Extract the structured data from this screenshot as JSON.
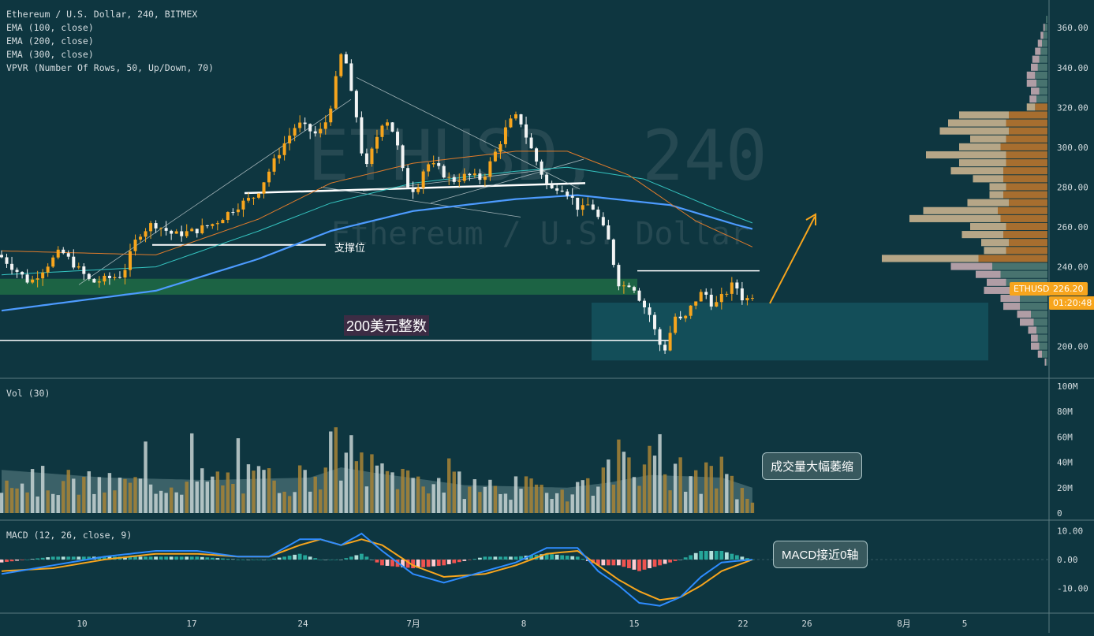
{
  "header": {
    "symbol": "Ethereum / U.S. Dollar, 240, BITMEX",
    "ema100": "EMA (100, close)",
    "ema200": "EMA (200, close)",
    "ema300": "EMA (300, close)",
    "vpvr": "VPVR (Number Of Rows, 50, Up/Down, 70)"
  },
  "watermark": {
    "big": "ETHUSD, 240",
    "sub": "Ethereum / U.S. Dollar"
  },
  "annotations": {
    "support": "支撑位",
    "round_number": "200美元整数",
    "volume_callout": "成交量大幅萎缩",
    "macd_callout": "MACD接近0轴"
  },
  "price_tag": {
    "symbol": "ETHUSD",
    "price": "226.20",
    "countdown": "01:20:48"
  },
  "colors": {
    "background": "#0e3640",
    "up": "#f7a51d",
    "down": "#f2f4f4",
    "ema100": "#e07b2b",
    "ema200": "#35c4c0",
    "ema300": "#4d9bff",
    "macd_line": "#2e8cff",
    "signal_line": "#f7a51d",
    "support_zone": "#1f6b45",
    "target_zone": "#14525e"
  },
  "panels": {
    "volume_label": "Vol (30)",
    "macd_label": "MACD (12, 26, close, 9)"
  },
  "x_axis": [
    "10",
    "17",
    "24",
    "7月",
    "8",
    "15",
    "22",
    "26",
    "8月",
    "5"
  ],
  "chart_data": [
    {
      "type": "candlestick",
      "title": "Ethereum / U.S. Dollar, 240, BITMEX",
      "ylim": [
        188,
        368
      ],
      "y_ticks": [
        "200.00",
        "220.00",
        "240.00",
        "260.00",
        "280.00",
        "300.00",
        "320.00",
        "340.00",
        "360.00"
      ],
      "price_path": [
        [
          0,
          246
        ],
        [
          6,
          232
        ],
        [
          12,
          248
        ],
        [
          18,
          232
        ],
        [
          24,
          236
        ],
        [
          27,
          256
        ],
        [
          30,
          262
        ],
        [
          34,
          256
        ],
        [
          38,
          258
        ],
        [
          42,
          262
        ],
        [
          46,
          270
        ],
        [
          50,
          276
        ],
        [
          55,
          300
        ],
        [
          58,
          312
        ],
        [
          62,
          306
        ],
        [
          64,
          315
        ],
        [
          66,
          340
        ],
        [
          67,
          352
        ],
        [
          68,
          332
        ],
        [
          70,
          310
        ],
        [
          71,
          286
        ],
        [
          73,
          302
        ],
        [
          75,
          316
        ],
        [
          77,
          306
        ],
        [
          79,
          282
        ],
        [
          81,
          278
        ],
        [
          83,
          292
        ],
        [
          85,
          290
        ],
        [
          88,
          283
        ],
        [
          91,
          286
        ],
        [
          94,
          284
        ],
        [
          97,
          300
        ],
        [
          99,
          312
        ],
        [
          101,
          316
        ],
        [
          103,
          302
        ],
        [
          105,
          290
        ],
        [
          107,
          278
        ],
        [
          109,
          281
        ],
        [
          111,
          276
        ],
        [
          113,
          268
        ],
        [
          115,
          272
        ],
        [
          117,
          262
        ],
        [
          119,
          250
        ],
        [
          120,
          234
        ],
        [
          121,
          230
        ],
        [
          123,
          232
        ],
        [
          125,
          222
        ],
        [
          127,
          214
        ],
        [
          128,
          202
        ],
        [
          130,
          198
        ],
        [
          131,
          216
        ],
        [
          133,
          212
        ],
        [
          135,
          222
        ],
        [
          137,
          228
        ],
        [
          139,
          220
        ],
        [
          141,
          226
        ],
        [
          143,
          232
        ],
        [
          145,
          222
        ],
        [
          146,
          226
        ]
      ],
      "ema300": [
        [
          0,
          218
        ],
        [
          30,
          228
        ],
        [
          50,
          244
        ],
        [
          64,
          258
        ],
        [
          80,
          268
        ],
        [
          100,
          274
        ],
        [
          112,
          276
        ],
        [
          130,
          271
        ],
        [
          143,
          261
        ],
        [
          146,
          259
        ]
      ],
      "ema200": [
        [
          0,
          236
        ],
        [
          30,
          240
        ],
        [
          50,
          258
        ],
        [
          64,
          272
        ],
        [
          80,
          282
        ],
        [
          100,
          288
        ],
        [
          110,
          290
        ],
        [
          125,
          284
        ],
        [
          138,
          270
        ],
        [
          146,
          262
        ]
      ],
      "ema100": [
        [
          0,
          248
        ],
        [
          30,
          246
        ],
        [
          50,
          264
        ],
        [
          64,
          282
        ],
        [
          80,
          292
        ],
        [
          100,
          298
        ],
        [
          110,
          298
        ],
        [
          122,
          286
        ],
        [
          135,
          263
        ],
        [
          146,
          250
        ]
      ],
      "support_zone": [
        226,
        234
      ],
      "round_number_level": 203,
      "target_zone": [
        193,
        222
      ],
      "resistance_level": 238,
      "support_line_level": 251,
      "vpvr_rows": [
        [
          364,
          1,
          0
        ],
        [
          360,
          2,
          1
        ],
        [
          356,
          3,
          2
        ],
        [
          352,
          4,
          3
        ],
        [
          348,
          5,
          4
        ],
        [
          344,
          6,
          5
        ],
        [
          340,
          7,
          5
        ],
        [
          336,
          9,
          6
        ],
        [
          332,
          8,
          7
        ],
        [
          328,
          6,
          6
        ],
        [
          324,
          8,
          5
        ],
        [
          320,
          9,
          6
        ],
        [
          316,
          28,
          36
        ],
        [
          312,
          30,
          42
        ],
        [
          308,
          28,
          50
        ],
        [
          304,
          30,
          26
        ],
        [
          300,
          34,
          30
        ],
        [
          296,
          30,
          58
        ],
        [
          292,
          30,
          34
        ],
        [
          288,
          32,
          38
        ],
        [
          284,
          32,
          22
        ],
        [
          280,
          30,
          12
        ],
        [
          276,
          32,
          10
        ],
        [
          272,
          28,
          30
        ],
        [
          268,
          36,
          54
        ],
        [
          264,
          34,
          66
        ],
        [
          260,
          30,
          26
        ],
        [
          256,
          32,
          30
        ],
        [
          252,
          28,
          20
        ],
        [
          248,
          30,
          16
        ],
        [
          244,
          50,
          70
        ],
        [
          240,
          40,
          30
        ],
        [
          236,
          34,
          18
        ],
        [
          232,
          30,
          14
        ],
        [
          228,
          26,
          20
        ],
        [
          224,
          20,
          14
        ],
        [
          220,
          20,
          12
        ],
        [
          216,
          12,
          10
        ],
        [
          212,
          10,
          10
        ],
        [
          208,
          8,
          6
        ],
        [
          204,
          7,
          5
        ],
        [
          200,
          6,
          6
        ],
        [
          196,
          4,
          3
        ],
        [
          192,
          1,
          1
        ]
      ]
    },
    {
      "type": "bar",
      "title": "Vol (30)",
      "ylim": [
        0,
        100
      ],
      "y_ticks": [
        "0",
        "20M",
        "40M",
        "60M",
        "80M",
        "100M"
      ],
      "volume_path": [
        [
          0,
          30
        ],
        [
          20,
          24
        ],
        [
          40,
          28
        ],
        [
          60,
          30
        ],
        [
          64,
          52
        ],
        [
          68,
          48
        ],
        [
          72,
          36
        ],
        [
          90,
          24
        ],
        [
          110,
          20
        ],
        [
          118,
          34
        ],
        [
          121,
          56
        ],
        [
          124,
          46
        ],
        [
          128,
          36
        ],
        [
          140,
          28
        ],
        [
          146,
          12
        ]
      ],
      "volume_ma": [
        [
          0,
          34
        ],
        [
          20,
          28
        ],
        [
          40,
          26
        ],
        [
          60,
          28
        ],
        [
          66,
          36
        ],
        [
          72,
          32
        ],
        [
          90,
          22
        ],
        [
          110,
          20
        ],
        [
          118,
          24
        ],
        [
          126,
          30
        ],
        [
          140,
          28
        ],
        [
          146,
          20
        ]
      ]
    },
    {
      "type": "line",
      "title": "MACD (12, 26, close, 9)",
      "ylim": [
        -18,
        12
      ],
      "y_ticks": [
        "10.00",
        "0.00",
        "-10.00"
      ],
      "macd": [
        [
          0,
          -5
        ],
        [
          10,
          -2
        ],
        [
          20,
          1
        ],
        [
          30,
          3
        ],
        [
          38,
          3
        ],
        [
          46,
          1
        ],
        [
          52,
          1
        ],
        [
          58,
          7
        ],
        [
          62,
          7
        ],
        [
          66,
          5
        ],
        [
          70,
          9
        ],
        [
          74,
          3
        ],
        [
          80,
          -5
        ],
        [
          86,
          -8
        ],
        [
          94,
          -4
        ],
        [
          100,
          -1
        ],
        [
          106,
          4
        ],
        [
          112,
          4
        ],
        [
          116,
          -4
        ],
        [
          120,
          -9
        ],
        [
          124,
          -15
        ],
        [
          128,
          -16
        ],
        [
          132,
          -13
        ],
        [
          136,
          -6
        ],
        [
          140,
          -1
        ],
        [
          146,
          0
        ]
      ],
      "signal": [
        [
          0,
          -4
        ],
        [
          10,
          -3
        ],
        [
          20,
          0
        ],
        [
          30,
          2
        ],
        [
          38,
          2
        ],
        [
          46,
          1
        ],
        [
          52,
          1
        ],
        [
          58,
          5
        ],
        [
          62,
          7
        ],
        [
          66,
          5
        ],
        [
          70,
          7
        ],
        [
          74,
          5
        ],
        [
          80,
          -2
        ],
        [
          86,
          -6
        ],
        [
          94,
          -5
        ],
        [
          100,
          -2
        ],
        [
          106,
          2
        ],
        [
          112,
          3
        ],
        [
          116,
          -2
        ],
        [
          120,
          -7
        ],
        [
          124,
          -11
        ],
        [
          128,
          -14
        ],
        [
          132,
          -13
        ],
        [
          136,
          -9
        ],
        [
          140,
          -4
        ],
        [
          146,
          0
        ]
      ]
    }
  ]
}
